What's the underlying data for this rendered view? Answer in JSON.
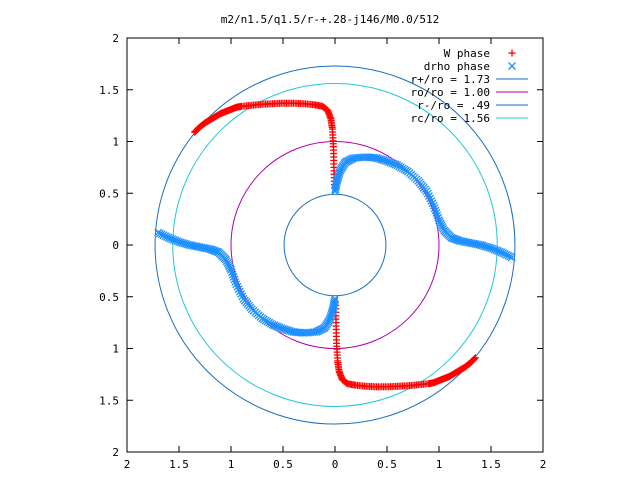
{
  "chart_data": {
    "type": "scatter",
    "title": "m2/n1.5/q1.5/r-+.28-j146/M0.0/512",
    "xlabel": "",
    "ylabel": "",
    "xlim": [
      -2,
      2
    ],
    "ylim": [
      -2,
      2
    ],
    "grid": false,
    "legend_position": "top-right",
    "x_tick_labels": [
      "2",
      "1.5",
      "1",
      "0.5",
      "0",
      "0.5",
      "1",
      "1.5",
      "2"
    ],
    "y_tick_labels": [
      "2",
      "1.5",
      "1",
      "0.5",
      "0",
      "0.5",
      "1",
      "1.5",
      "2"
    ],
    "series": [
      {
        "name": "W phase",
        "marker": "+",
        "color": "#ff0000",
        "points": [
          [
            -1.35,
            1.09
          ],
          [
            -1.3,
            1.14
          ],
          [
            -1.25,
            1.18
          ],
          [
            -1.2,
            1.21
          ],
          [
            -1.15,
            1.24
          ],
          [
            -1.1,
            1.27
          ],
          [
            -1.05,
            1.29
          ],
          [
            -1.0,
            1.31
          ],
          [
            -0.95,
            1.33
          ],
          [
            -0.9,
            1.34
          ],
          [
            -0.8,
            1.35
          ],
          [
            -0.7,
            1.36
          ],
          [
            -0.6,
            1.365
          ],
          [
            -0.5,
            1.37
          ],
          [
            -0.4,
            1.37
          ],
          [
            -0.3,
            1.365
          ],
          [
            -0.2,
            1.355
          ],
          [
            -0.12,
            1.34
          ],
          [
            -0.07,
            1.3
          ],
          [
            -0.04,
            1.22
          ],
          [
            -0.025,
            1.12
          ],
          [
            -0.015,
            0.95
          ],
          [
            -0.01,
            0.75
          ],
          [
            -0.005,
            0.55
          ],
          [
            1.35,
            -1.09
          ],
          [
            1.3,
            -1.14
          ],
          [
            1.25,
            -1.18
          ],
          [
            1.2,
            -1.21
          ],
          [
            1.15,
            -1.24
          ],
          [
            1.1,
            -1.27
          ],
          [
            1.05,
            -1.29
          ],
          [
            1.0,
            -1.31
          ],
          [
            0.95,
            -1.33
          ],
          [
            0.9,
            -1.34
          ],
          [
            0.8,
            -1.35
          ],
          [
            0.7,
            -1.36
          ],
          [
            0.6,
            -1.365
          ],
          [
            0.5,
            -1.37
          ],
          [
            0.4,
            -1.37
          ],
          [
            0.3,
            -1.365
          ],
          [
            0.2,
            -1.355
          ],
          [
            0.12,
            -1.34
          ],
          [
            0.07,
            -1.3
          ],
          [
            0.04,
            -1.22
          ],
          [
            0.025,
            -1.12
          ],
          [
            0.015,
            -0.95
          ],
          [
            0.01,
            -0.75
          ],
          [
            0.005,
            -0.55
          ]
        ]
      },
      {
        "name": "drho phase",
        "marker": "x",
        "color": "#1e90ff",
        "points": [
          [
            0.0,
            0.52
          ],
          [
            0.02,
            0.62
          ],
          [
            0.05,
            0.72
          ],
          [
            0.1,
            0.8
          ],
          [
            0.18,
            0.84
          ],
          [
            0.3,
            0.85
          ],
          [
            0.4,
            0.84
          ],
          [
            0.5,
            0.81
          ],
          [
            0.6,
            0.77
          ],
          [
            0.7,
            0.71
          ],
          [
            0.8,
            0.62
          ],
          [
            0.88,
            0.52
          ],
          [
            0.95,
            0.38
          ],
          [
            1.0,
            0.24
          ],
          [
            1.05,
            0.14
          ],
          [
            1.12,
            0.07
          ],
          [
            1.2,
            0.04
          ],
          [
            1.3,
            0.02
          ],
          [
            1.4,
            0.0
          ],
          [
            1.5,
            -0.03
          ],
          [
            1.6,
            -0.07
          ],
          [
            1.7,
            -0.12
          ],
          [
            0.0,
            -0.52
          ],
          [
            -0.02,
            -0.62
          ],
          [
            -0.05,
            -0.72
          ],
          [
            -0.1,
            -0.8
          ],
          [
            -0.18,
            -0.84
          ],
          [
            -0.3,
            -0.85
          ],
          [
            -0.4,
            -0.84
          ],
          [
            -0.5,
            -0.81
          ],
          [
            -0.6,
            -0.77
          ],
          [
            -0.7,
            -0.71
          ],
          [
            -0.8,
            -0.62
          ],
          [
            -0.88,
            -0.52
          ],
          [
            -0.95,
            -0.38
          ],
          [
            -1.0,
            -0.24
          ],
          [
            -1.05,
            -0.14
          ],
          [
            -1.12,
            -0.07
          ],
          [
            -1.2,
            -0.04
          ],
          [
            -1.3,
            -0.02
          ],
          [
            -1.4,
            0.0
          ],
          [
            -1.5,
            0.03
          ],
          [
            -1.6,
            0.07
          ],
          [
            -1.7,
            0.12
          ]
        ]
      },
      {
        "name": "r+/ro = 1.73",
        "type": "circle",
        "radius": 1.73,
        "color": "#1a6fbf"
      },
      {
        "name": "ro/ro = 1.00",
        "type": "circle",
        "radius": 1.0,
        "color": "#b000b0"
      },
      {
        "name": "r-/ro = .49",
        "type": "circle",
        "radius": 0.49,
        "color": "#1a6fbf"
      },
      {
        "name": "rc/ro = 1.56",
        "type": "circle",
        "radius": 1.56,
        "color": "#20c8d8"
      }
    ]
  }
}
